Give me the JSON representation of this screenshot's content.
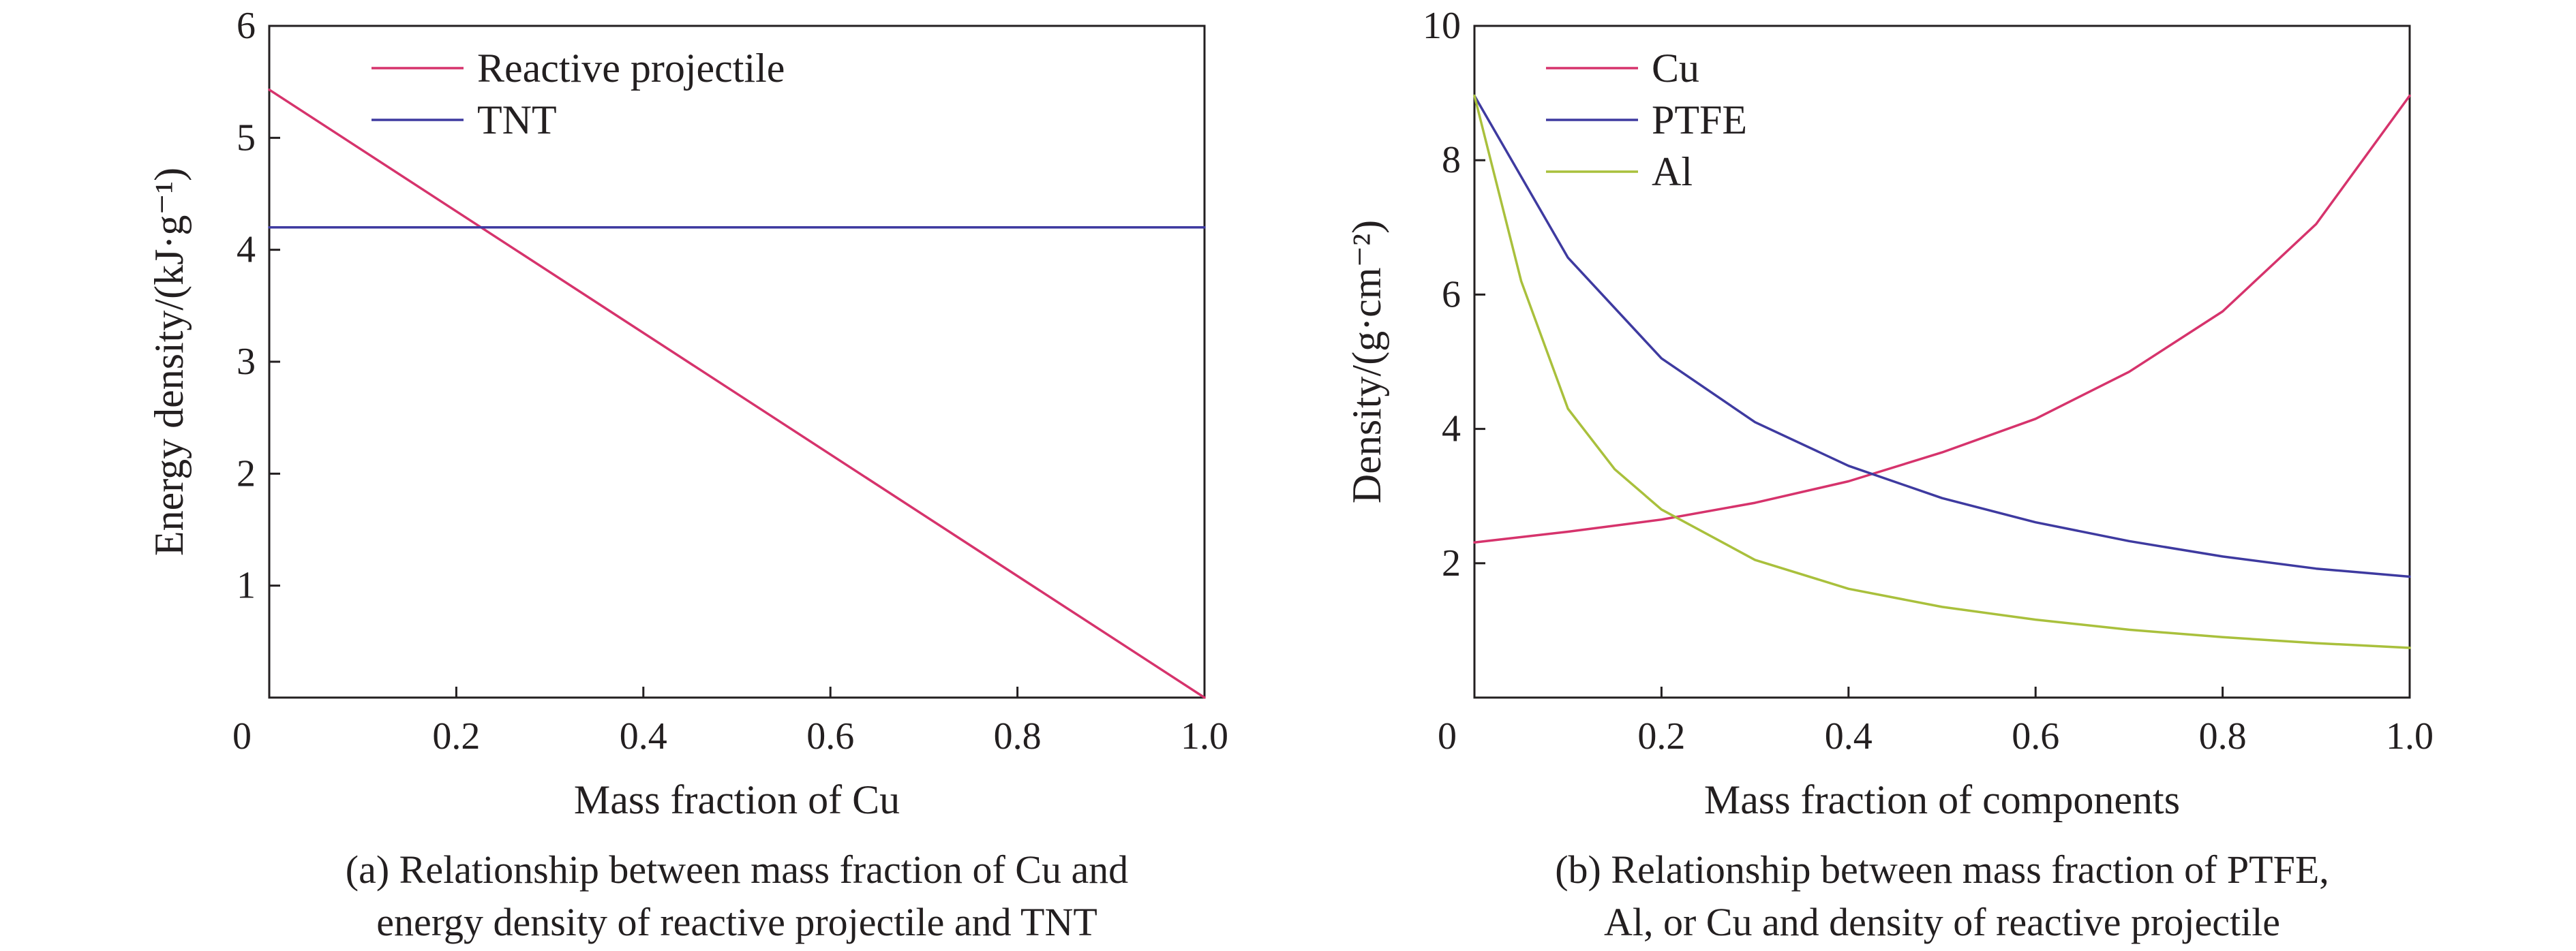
{
  "chart_data": [
    {
      "type": "line",
      "xlabel": "Mass fraction of Cu",
      "ylabel": "Energy density/(kJ·g⁻¹)",
      "xlim": [
        0,
        1.0
      ],
      "ylim": [
        0,
        6
      ],
      "xticks": [
        "0",
        "0.2",
        "0.4",
        "0.6",
        "0.8",
        "1.0"
      ],
      "yticks": [
        "1",
        "2",
        "3",
        "4",
        "5",
        "6"
      ],
      "legend_position": "top-left",
      "grid": false,
      "caption": [
        "(a) Relationship between mass fraction of Cu and",
        "energy density of reactive projectile and TNT"
      ],
      "series": [
        {
          "name": "Reactive projectile",
          "color": "#d6336c",
          "x": [
            0,
            1.0
          ],
          "y": [
            5.43,
            0
          ]
        },
        {
          "name": "TNT",
          "color": "#3e3aa0",
          "x": [
            0,
            1.0
          ],
          "y": [
            4.2,
            4.2
          ]
        }
      ]
    },
    {
      "type": "line",
      "xlabel": "Mass fraction of components",
      "ylabel": "Density/(g·cm⁻²)",
      "xlim": [
        0,
        1.0
      ],
      "ylim": [
        0,
        10
      ],
      "xticks": [
        "0",
        "0.2",
        "0.4",
        "0.6",
        "0.8",
        "1.0"
      ],
      "yticks": [
        "2",
        "4",
        "6",
        "8",
        "10"
      ],
      "legend_position": "top-left",
      "grid": false,
      "caption": [
        "(b) Relationship between mass fraction of PTFE,",
        "Al, or Cu and density of reactive projectile"
      ],
      "series": [
        {
          "name": "Cu",
          "color": "#d6336c",
          "x": [
            0,
            0.1,
            0.2,
            0.3,
            0.4,
            0.5,
            0.6,
            0.7,
            0.8,
            0.9,
            1.0
          ],
          "y": [
            2.31,
            2.47,
            2.65,
            2.9,
            3.22,
            3.65,
            4.15,
            4.85,
            5.75,
            7.05,
            8.96
          ]
        },
        {
          "name": "PTFE",
          "color": "#3e3aa0",
          "x": [
            0,
            0.1,
            0.2,
            0.3,
            0.4,
            0.5,
            0.6,
            0.7,
            0.8,
            0.9,
            1.0
          ],
          "y": [
            8.96,
            6.55,
            5.05,
            4.1,
            3.45,
            2.97,
            2.61,
            2.33,
            2.1,
            1.92,
            1.8
          ]
        },
        {
          "name": "Al",
          "color": "#a9c03c",
          "x": [
            0,
            0.05,
            0.1,
            0.15,
            0.2,
            0.3,
            0.4,
            0.5,
            0.6,
            0.7,
            0.8,
            0.9,
            1.0
          ],
          "y": [
            8.96,
            6.2,
            4.3,
            3.4,
            2.8,
            2.05,
            1.62,
            1.35,
            1.16,
            1.01,
            0.9,
            0.81,
            0.74
          ]
        }
      ]
    }
  ]
}
